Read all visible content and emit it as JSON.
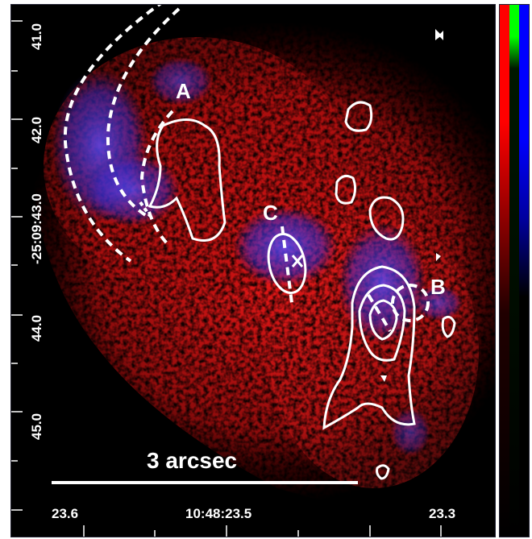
{
  "image": {
    "description_free": true,
    "colors": {
      "background": "#000000",
      "emission_red": "#e01414",
      "emission_blue": "#4a3cff",
      "contour": "#ffffff"
    },
    "region_labels": {
      "a": "A",
      "b": "B",
      "c": "C"
    },
    "scalebar_label": "3 arcsec",
    "y_ticks": [
      "41.0",
      "42.0",
      "-25:09:43.0",
      "44.0",
      "45.0"
    ],
    "x_ticks": [
      "23.6",
      "10:48:23.5",
      "23.3"
    ],
    "colorbar": {
      "stops": [
        "#ff0000",
        "#00ff00",
        "#0000ff",
        "#000000"
      ]
    }
  }
}
